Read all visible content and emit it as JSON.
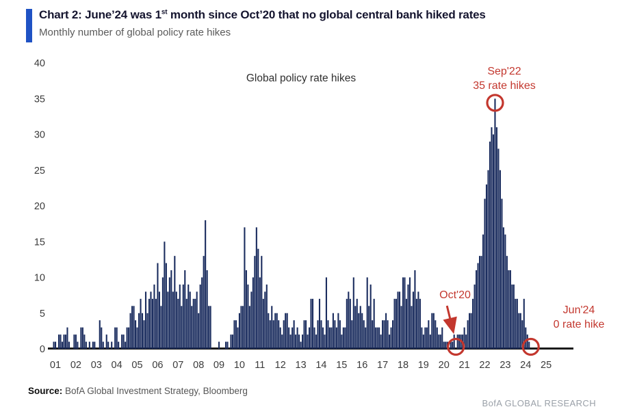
{
  "header": {
    "title_prefix": "Chart 2: June’24 was 1",
    "title_sup": "st",
    "title_suffix": " month since Oct’20 that no global central bank hiked rates",
    "subtitle": "Monthly number of global policy rate hikes"
  },
  "chart_data": {
    "type": "bar",
    "title": "Global policy rate hikes",
    "xlabel": "",
    "ylabel": "",
    "ylim": [
      0,
      40
    ],
    "yticks": [
      0,
      5,
      10,
      15,
      20,
      25,
      30,
      35,
      40
    ],
    "x_tick_labels": [
      "01",
      "02",
      "03",
      "04",
      "05",
      "06",
      "07",
      "08",
      "09",
      "10",
      "11",
      "12",
      "13",
      "14",
      "15",
      "16",
      "17",
      "18",
      "19",
      "20",
      "21",
      "22",
      "23",
      "24",
      "25"
    ],
    "grid": false,
    "legend": "none",
    "series_name": "Monthly number of global policy rate hikes",
    "start_month": "2001-01",
    "end_month": "2024-06",
    "values_by_year": {
      "2001": [
        0,
        1,
        1,
        0,
        2,
        2,
        1,
        2,
        2,
        3,
        1,
        0
      ],
      "2002": [
        0,
        2,
        2,
        1,
        0,
        3,
        3,
        2,
        1,
        0,
        1,
        0
      ],
      "2003": [
        1,
        1,
        0,
        0,
        4,
        3,
        1,
        0,
        2,
        1,
        0,
        1
      ],
      "2004": [
        0,
        3,
        3,
        1,
        0,
        2,
        2,
        1,
        3,
        3,
        5,
        6
      ],
      "2005": [
        6,
        4,
        3,
        5,
        7,
        5,
        4,
        8,
        5,
        7,
        8,
        7
      ],
      "2006": [
        9,
        7,
        12,
        8,
        6,
        10,
        15,
        12,
        8,
        10,
        11,
        8
      ],
      "2007": [
        13,
        8,
        7,
        9,
        6,
        9,
        11,
        7,
        9,
        8,
        6,
        7
      ],
      "2008": [
        7,
        8,
        5,
        9,
        10,
        13,
        18,
        11,
        6,
        6,
        0,
        0
      ],
      "2009": [
        0,
        0,
        1,
        0,
        0,
        0,
        1,
        1,
        0,
        2,
        2,
        4
      ],
      "2010": [
        4,
        3,
        5,
        6,
        6,
        17,
        11,
        9,
        6,
        8,
        10,
        13
      ],
      "2011": [
        17,
        14,
        10,
        13,
        7,
        8,
        9,
        5,
        4,
        6,
        4,
        5
      ],
      "2012": [
        5,
        4,
        3,
        2,
        4,
        5,
        5,
        3,
        2,
        3,
        4,
        2
      ],
      "2013": [
        3,
        2,
        1,
        2,
        4,
        4,
        2,
        3,
        7,
        7,
        3,
        2
      ],
      "2014": [
        4,
        7,
        4,
        3,
        2,
        10,
        4,
        3,
        3,
        5,
        4,
        3
      ],
      "2015": [
        5,
        4,
        2,
        3,
        3,
        7,
        8,
        7,
        4,
        10,
        6,
        7
      ],
      "2016": [
        5,
        6,
        5,
        4,
        3,
        10,
        6,
        9,
        4,
        7,
        3,
        3
      ],
      "2017": [
        3,
        2,
        4,
        4,
        5,
        4,
        2,
        3,
        4,
        7,
        7,
        8
      ],
      "2018": [
        8,
        6,
        10,
        10,
        7,
        9,
        10,
        6,
        8,
        11,
        7,
        8
      ],
      "2019": [
        7,
        3,
        2,
        3,
        3,
        4,
        2,
        5,
        5,
        4,
        3,
        2
      ],
      "2020": [
        2,
        3,
        1,
        1,
        1,
        0,
        1,
        1,
        2,
        0,
        2,
        2
      ],
      "2021": [
        2,
        2,
        3,
        2,
        4,
        5,
        5,
        7,
        9,
        11,
        12,
        13
      ],
      "2022": [
        13,
        16,
        21,
        23,
        25,
        29,
        31,
        30,
        35,
        31,
        28,
        25
      ],
      "2023": [
        21,
        17,
        16,
        13,
        11,
        11,
        9,
        9,
        7,
        7,
        5,
        5
      ],
      "2024": [
        4,
        7,
        3,
        2,
        1,
        0
      ]
    }
  },
  "annotations": [
    {
      "id": "sep22",
      "month": "2022-09",
      "lines": [
        "Sep'22",
        "35 rate hikes"
      ],
      "value": 35
    },
    {
      "id": "oct20",
      "month": "2020-10",
      "lines": [
        "Oct'20"
      ],
      "value": 0,
      "arrow": true
    },
    {
      "id": "jun24",
      "month": "2024-06",
      "lines": [
        "Jun'24",
        "0 rate hike"
      ],
      "value": 0
    }
  ],
  "footer": {
    "source_label": "Source:",
    "source_text": " BofA Global Investment Strategy, Bloomberg",
    "brand": "BofA GLOBAL RESEARCH"
  },
  "colors": {
    "bar": "#1a2c5e",
    "accent": "#1f52c4",
    "annotation": "#c3372e",
    "axis": "#1b1b1b"
  }
}
